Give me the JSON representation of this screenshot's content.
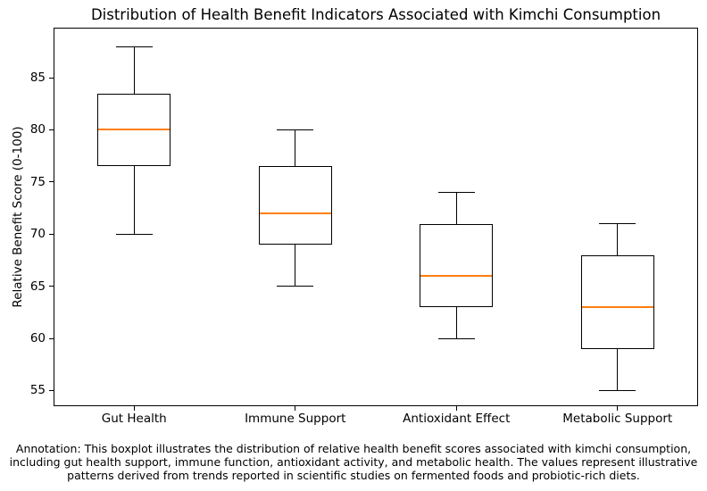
{
  "chart_data": {
    "type": "boxplot",
    "title": "Distribution of Health Benefit Indicators Associated with Kimchi Consumption",
    "xlabel": "",
    "ylabel": "Relative Benefit Score (0-100)",
    "categories": [
      "Gut Health",
      "Immune Support",
      "Antioxidant Effect",
      "Metabolic Support"
    ],
    "series": [
      {
        "name": "Gut Health",
        "min": 70,
        "q1": 76.5,
        "median": 80,
        "q3": 83.5,
        "max": 88
      },
      {
        "name": "Immune Support",
        "min": 65,
        "q1": 69,
        "median": 72,
        "q3": 76.5,
        "max": 80
      },
      {
        "name": "Antioxidant Effect",
        "min": 60,
        "q1": 63,
        "median": 66,
        "q3": 71,
        "max": 74
      },
      {
        "name": "Metabolic Support",
        "min": 55,
        "q1": 59,
        "median": 63,
        "q3": 68,
        "max": 71
      }
    ],
    "yticks": [
      55,
      60,
      65,
      70,
      75,
      80,
      85
    ],
    "ylim": [
      53.5,
      89.8
    ],
    "grid": false,
    "legend": "none",
    "colors": {
      "median": "#ff7f0e",
      "box": "#000000",
      "background": "#ffffff"
    },
    "annotation": "Annotation: This boxplot illustrates the distribution of relative health benefit scores associated with kimchi consumption,\nincluding gut health support, immune function, antioxidant activity, and metabolic health. The values represent illustrative\npatterns derived from trends reported in scientific studies on fermented foods and probiotic-rich diets."
  }
}
